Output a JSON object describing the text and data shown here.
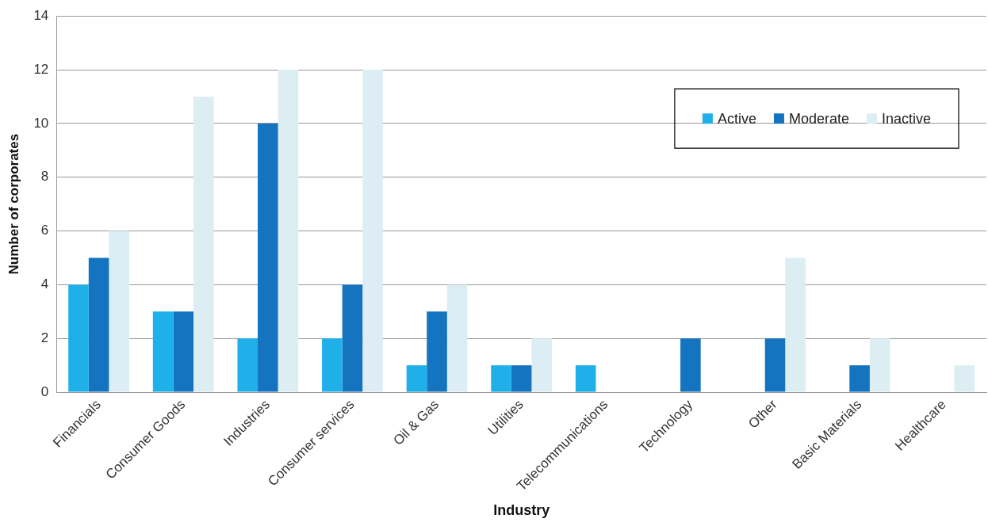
{
  "chart_data": {
    "type": "bar",
    "xlabel": "Industry",
    "ylabel": "Number of corporates",
    "categories": [
      "Financials",
      "Consumer Goods",
      "Industries",
      "Consumer services",
      "Oil & Gas",
      "Utilities",
      "Telecommunications",
      "Technology",
      "Other",
      "Basic Materials",
      "Healthcare"
    ],
    "series": [
      {
        "name": "Active",
        "color": "#1fb0ea",
        "values": [
          4,
          3,
          2,
          2,
          1,
          1,
          1,
          0,
          0,
          0,
          0
        ]
      },
      {
        "name": "Moderate",
        "color": "#1474c0",
        "values": [
          5,
          3,
          10,
          4,
          3,
          1,
          0,
          2,
          2,
          1,
          0
        ]
      },
      {
        "name": "Inactive",
        "color": "#dcedf4",
        "values": [
          6,
          11,
          12,
          12,
          4,
          2,
          0,
          0,
          5,
          2,
          1
        ]
      }
    ],
    "ylim": [
      0,
      14
    ],
    "yticks": [
      0,
      2,
      4,
      6,
      8,
      10,
      12,
      14
    ],
    "grid": "y",
    "legend": "top right"
  }
}
